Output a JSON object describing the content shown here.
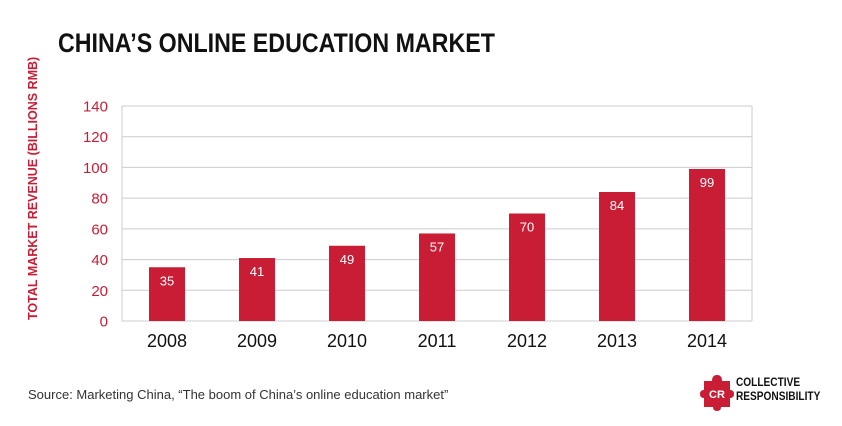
{
  "title": "CHINA’S ONLINE EDUCATION MARKET",
  "source": "Source: Marketing China, “The boom of China’s online education market”",
  "brand": {
    "mark": "CR",
    "line1": "COLLECTIVE",
    "line2": "RESPONSIBILITY"
  },
  "colors": {
    "bar": "#c81d35",
    "axis_text": "#c81d35",
    "grid": "#cccccc",
    "text": "#111111"
  },
  "chart_data": {
    "type": "bar",
    "title": "CHINA’S ONLINE EDUCATION MARKET",
    "xlabel": "",
    "ylabel": "TOTAL MARKET REVENUE (BILLIONS RMB)",
    "categories": [
      "2008",
      "2009",
      "2010",
      "2011",
      "2012",
      "2013",
      "2014"
    ],
    "values": [
      35,
      41,
      49,
      57,
      70,
      84,
      99
    ],
    "data_labels": [
      "35",
      "41",
      "49",
      "57",
      "70",
      "84",
      "99"
    ],
    "ylim": [
      0,
      140
    ],
    "yticks": [
      0,
      20,
      40,
      60,
      80,
      100,
      120,
      140
    ],
    "grid": true,
    "legend": "none"
  }
}
